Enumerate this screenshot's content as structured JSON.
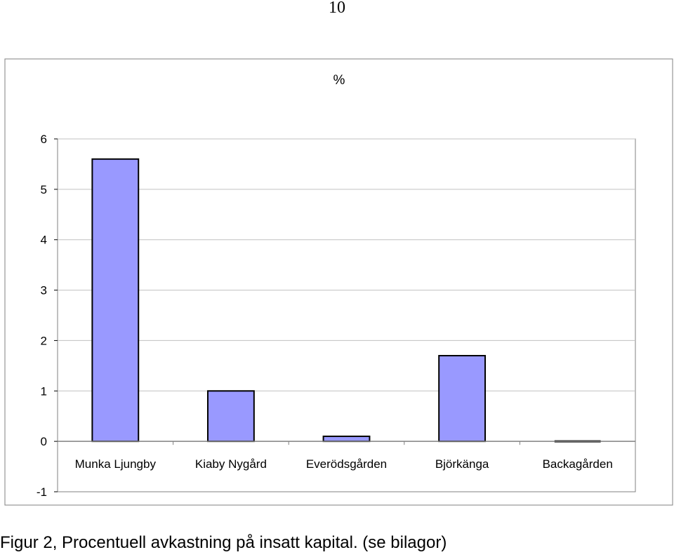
{
  "page": {
    "page_number": "10",
    "caption": "Figur 2, Procentuell avkastning på insatt kapital. (se bilagor)"
  },
  "chart_data": {
    "type": "bar",
    "title": "%",
    "xlabel": "",
    "ylabel": "",
    "categories": [
      "Munka Ljungby",
      "Kiaby Nygård",
      "Everödsgården",
      "Björkänga",
      "Backagården"
    ],
    "values": [
      5.6,
      1.0,
      0.1,
      1.7,
      0.0
    ],
    "ylim": [
      -1,
      6
    ],
    "yticks": [
      -1,
      0,
      1,
      2,
      3,
      4,
      5,
      6
    ],
    "grid": true,
    "legend": "none",
    "colors": {
      "bar_fill": "#9999ff",
      "bar_stroke": "#000000",
      "grid": "#c0c0c0",
      "frame": "#808080"
    }
  }
}
